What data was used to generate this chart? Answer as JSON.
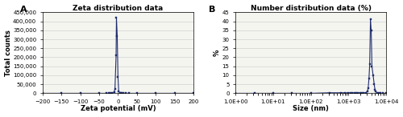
{
  "panel_A": {
    "title": "Zeta distribution data",
    "xlabel": "Zeta potential (mV)",
    "ylabel": "Total counts",
    "xlim": [
      -200,
      200
    ],
    "ylim": [
      0,
      450000
    ],
    "yticks": [
      0,
      50000,
      100000,
      150000,
      200000,
      250000,
      300000,
      350000,
      400000,
      450000
    ],
    "ytick_labels": [
      "0",
      "50,000",
      "100,000",
      "150,000",
      "200,000",
      "250,000",
      "300,000",
      "350,000",
      "400,000",
      "450,000"
    ],
    "xticks": [
      -200,
      -150,
      -100,
      -50,
      0,
      50,
      100,
      150,
      200
    ],
    "data_x": [
      -200,
      -150,
      -100,
      -50,
      -30,
      -25,
      -20,
      -15,
      -10,
      -8,
      -5,
      -4.1,
      -2,
      0,
      2,
      5,
      8,
      10,
      15,
      20,
      30,
      50,
      100,
      150,
      200
    ],
    "data_y": [
      0,
      0,
      0,
      0,
      0,
      200,
      500,
      2000,
      8000,
      25000,
      210000,
      420000,
      320000,
      90000,
      10000,
      2000,
      500,
      100,
      0,
      0,
      0,
      0,
      0,
      0,
      0
    ],
    "line_color": "#1f2d6e",
    "marker_color": "#1f2d6e",
    "marker_style": "s",
    "marker_size": 1.5,
    "line_width": 0.8,
    "label_A": "A"
  },
  "panel_B": {
    "title": "Number distribution data (%)",
    "xlabel": "Size (nm)",
    "ylabel": "%",
    "ylim": [
      0,
      45
    ],
    "yticks": [
      0,
      5,
      10,
      15,
      20,
      25,
      30,
      35,
      40,
      45
    ],
    "xtick_labels": [
      "1.0E+00",
      "1.0E+01",
      "1.0E+02",
      "1.0E+03",
      "1.0E+04"
    ],
    "data_x_log": [
      0.0,
      0.5,
      1.0,
      1.5,
      2.0,
      2.5,
      2.8,
      2.9,
      3.0,
      3.05,
      3.1,
      3.15,
      3.2,
      3.25,
      3.3,
      3.35,
      3.4,
      3.45,
      3.5,
      3.52,
      3.54,
      3.56,
      3.58,
      3.6,
      3.62,
      3.65,
      3.68,
      3.7,
      3.72,
      3.75,
      3.8,
      3.85,
      3.9,
      4.0
    ],
    "data_y": [
      0,
      0,
      0,
      0,
      0,
      0.3,
      0.3,
      0.3,
      0.3,
      0.3,
      0.3,
      0.3,
      0.3,
      0.3,
      0.3,
      0.3,
      0.3,
      0.3,
      1.0,
      3.0,
      8.0,
      16.0,
      41.0,
      35.0,
      15.0,
      10.0,
      5.0,
      2.0,
      1.0,
      0.3,
      0.3,
      0,
      0,
      0
    ],
    "line_color": "#1f2d6e",
    "marker_color": "#1f2d6e",
    "marker_style": "s",
    "marker_size": 1.5,
    "line_width": 0.8,
    "label_B": "B"
  },
  "bg_color": "#ffffff",
  "plot_bg_color": "#f5f5f0",
  "grid_color": "#d0d0d0",
  "font_size_title": 6.5,
  "font_size_axis": 6,
  "font_size_tick": 5,
  "font_size_label": 8
}
